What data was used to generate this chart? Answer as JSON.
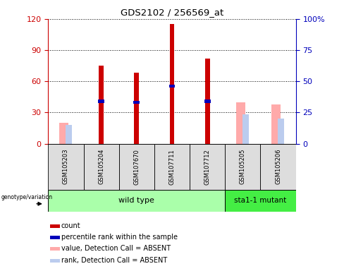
{
  "title": "GDS2102 / 256569_at",
  "samples": [
    "GSM105203",
    "GSM105204",
    "GSM107670",
    "GSM107711",
    "GSM107712",
    "GSM105205",
    "GSM105206"
  ],
  "count_values": [
    0,
    75,
    68,
    115,
    82,
    0,
    0
  ],
  "percentile_rank_values": [
    0,
    34,
    33,
    46,
    34,
    0,
    0
  ],
  "absent_value_values": [
    20,
    0,
    0,
    0,
    0,
    40,
    38
  ],
  "absent_rank_values": [
    18,
    0,
    0,
    0,
    0,
    28,
    24
  ],
  "left_ylim": [
    0,
    120
  ],
  "right_ylim": [
    0,
    100
  ],
  "left_yticks": [
    0,
    30,
    60,
    90,
    120
  ],
  "right_yticks": [
    0,
    25,
    50,
    75,
    100
  ],
  "right_yticklabels": [
    "0",
    "25",
    "50",
    "75",
    "100%"
  ],
  "count_color": "#cc0000",
  "percentile_color": "#0000bb",
  "absent_value_color": "#ffaaaa",
  "absent_rank_color": "#bbccee",
  "bg_color": "#dddddd",
  "wt_color": "#aaffaa",
  "mut_color": "#44ee44",
  "title_color": "#000000",
  "left_axis_color": "#cc0000",
  "right_axis_color": "#0000bb",
  "legend_items": [
    {
      "label": "count",
      "color": "#cc0000"
    },
    {
      "label": "percentile rank within the sample",
      "color": "#0000bb"
    },
    {
      "label": "value, Detection Call = ABSENT",
      "color": "#ffaaaa"
    },
    {
      "label": "rank, Detection Call = ABSENT",
      "color": "#bbccee"
    }
  ]
}
